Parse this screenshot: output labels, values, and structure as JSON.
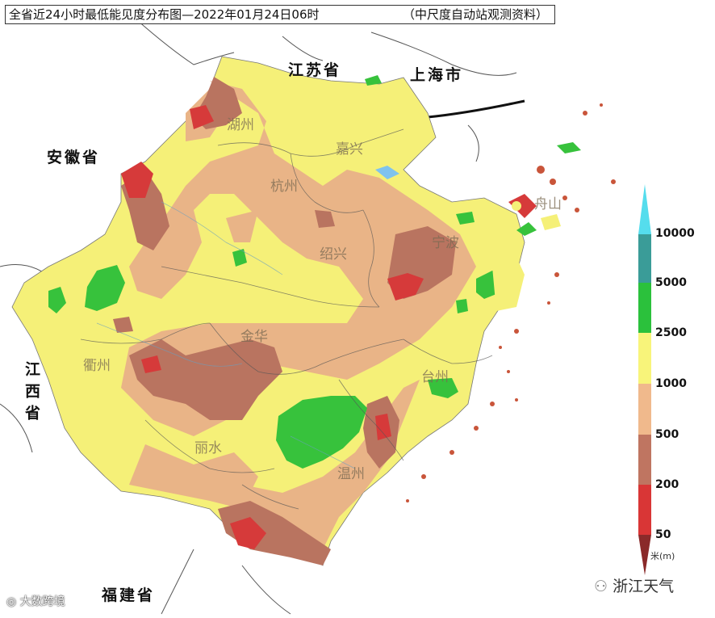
{
  "header": {
    "title": "全省近24小时最低能见度分布图—2022年01月24日06时",
    "source_note": "（中尺度自动站观测资料）"
  },
  "regions": {
    "jiangsu": "江苏省",
    "shanghai": "上海市",
    "anhui": "安徽省",
    "jiangxi": "江西省",
    "fujian": "福建省"
  },
  "cities": [
    "湖州",
    "嘉兴",
    "杭州",
    "绍兴",
    "宁波",
    "舟山",
    "金华",
    "衢州",
    "台州",
    "丽水",
    "温州"
  ],
  "legend": {
    "unit": "米(m)",
    "values": [
      "10000",
      "5000",
      "2500",
      "1000",
      "500",
      "200",
      "50"
    ],
    "colors": [
      "#55dded",
      "#3a9c98",
      "#2bc13c",
      "#f8f47a",
      "#f0b98c",
      "#bf7561",
      "#d93636",
      "#8a2a2a"
    ]
  },
  "colors": {
    "yellow": "#f5f078",
    "peach": "#e9b487",
    "brown": "#b97460",
    "red": "#d63a3a",
    "green": "#37c23c",
    "lake": "#7fc3ee"
  },
  "watermarks": {
    "left": "大数跨境",
    "right": "浙江天气"
  }
}
